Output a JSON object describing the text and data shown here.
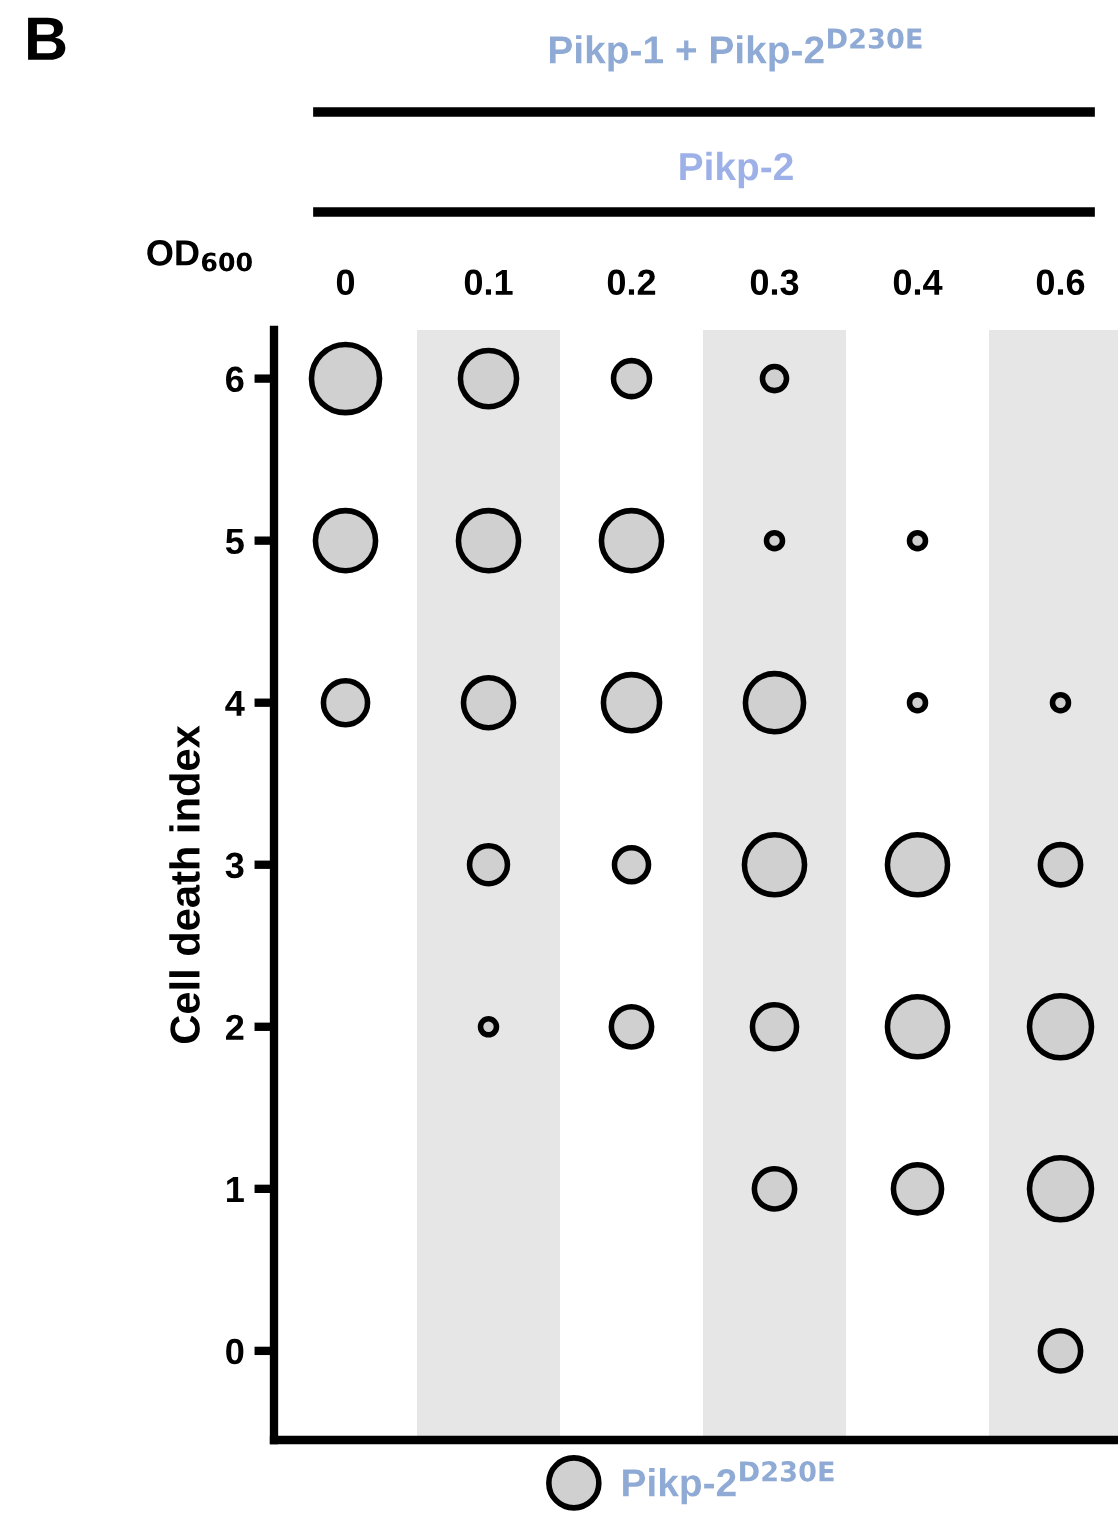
{
  "chart_data": {
    "type": "bubble",
    "title": "Pikp-1 + Pikp-2$^{D230E}$",
    "subtitle": "Pikp-2",
    "xlabel": "OD$_{600}$",
    "ylabel": "Cell death index",
    "annotations": [
      "B"
    ],
    "categories": [
      "0",
      "0.1",
      "0.2",
      "0.3",
      "0.4",
      "0.6"
    ],
    "ylim": [
      -0.55,
      6.3
    ],
    "yticks": [
      0,
      1,
      2,
      3,
      4,
      5,
      6
    ],
    "bands": [
      {
        "axis": "x",
        "from": "0.1",
        "to": "0.1",
        "color": "#e6e6e6"
      },
      {
        "axis": "x",
        "from": "0.3",
        "to": "0.3",
        "color": "#e6e6e6"
      },
      {
        "axis": "x",
        "from": "0.6",
        "to": "0.6",
        "color": "#e6e6e6"
      }
    ],
    "series": [
      {
        "name": "Pikp-2$^{D230E}$",
        "color": "#d0d0d0",
        "x": [
          "0",
          "0",
          "0",
          "0.1",
          "0.1",
          "0.1",
          "0.1",
          "0.1",
          "0.2",
          "0.2",
          "0.2",
          "0.2",
          "0.2",
          "0.3",
          "0.3",
          "0.3",
          "0.3",
          "0.3",
          "0.3",
          "0.4",
          "0.4",
          "0.4",
          "0.4",
          "0.4",
          "0.6",
          "0.6",
          "0.6",
          "0.6",
          "0.6"
        ],
        "values": [
          6,
          5,
          4,
          6,
          5,
          4,
          3,
          2,
          6,
          5,
          4,
          3,
          2,
          6,
          5,
          4,
          3,
          2,
          1,
          5,
          4,
          3,
          2,
          1,
          4,
          3,
          2,
          1,
          0
        ],
        "sizes": [
          1,
          0.78,
          0.42,
          0.68,
          0.78,
          0.54,
          0.31,
          0.055,
          0.28,
          0.78,
          0.68,
          0.25,
          0.35,
          0.125,
          0.055,
          0.73,
          0.78,
          0.42,
          0.35,
          0.055,
          0.055,
          0.78,
          0.78,
          0.5,
          0.055,
          0.35,
          0.83,
          0.83,
          0.35
        ]
      }
    ],
    "marker": "circle",
    "legend": "bottom",
    "grid": false
  }
}
